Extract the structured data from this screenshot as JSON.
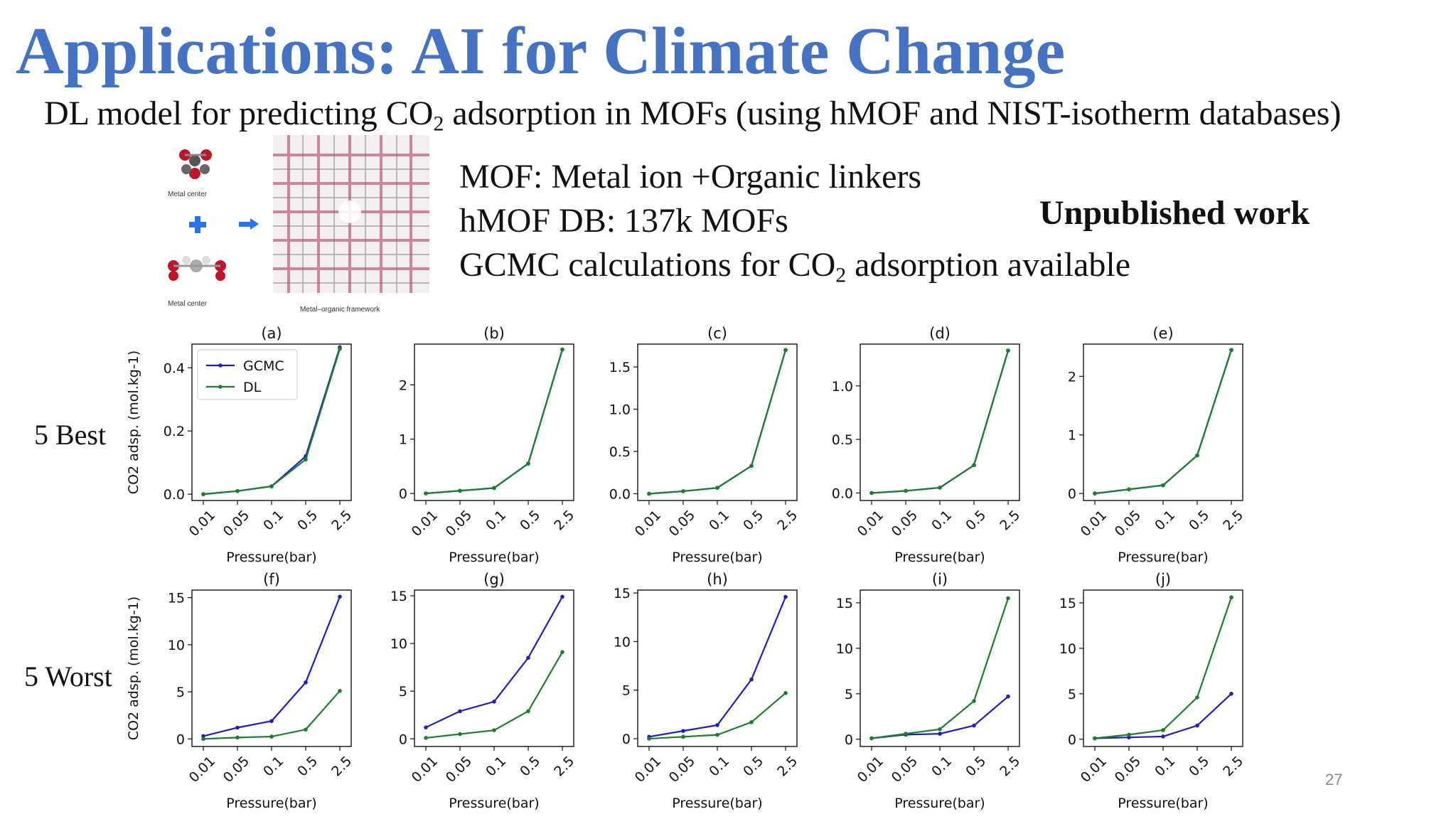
{
  "slide": {
    "title": "Applications: AI for Climate Change",
    "subtitle_pre": "DL model for predicting CO",
    "subtitle_sub": "2",
    "subtitle_post": " adsorption in MOFs (using hMOF and NIST-isotherm databases)",
    "bullets": {
      "line1": "MOF: Metal ion +Organic linkers",
      "line2": "hMOF DB: 137k MOFs",
      "line3_pre": "GCMC calculations for CO",
      "line3_sub": "2",
      "line3_post": " adsorption available"
    },
    "unpublished": "Unpublished work",
    "row_best": "5 Best",
    "row_worst": "5 Worst",
    "page_number": "27",
    "image": {
      "metal_center_top": "Metal center",
      "metal_center_bottom": "Metal center",
      "framework_caption": "Metal–organic framework"
    }
  },
  "colors": {
    "gcmc": "#1f1fbf",
    "dl": "#1a7f2a",
    "title": "#4472c4"
  },
  "chart_data": [
    {
      "type": "line",
      "title": "(a)",
      "x": [
        "0.01",
        "0.05",
        "0.1",
        "0.5",
        "2.5"
      ],
      "xlabel": "Pressure(bar)",
      "ylabel": "CO2 adsp. (mol.kg-1)",
      "ylim": [
        -0.02,
        0.475
      ],
      "yticks": [
        0.0,
        0.2,
        0.4
      ],
      "yticklabels": [
        "0.0",
        "0.2",
        "0.4"
      ],
      "legend": {
        "position": "top-left",
        "entries": [
          "GCMC",
          "DL"
        ]
      },
      "series": [
        {
          "name": "GCMC",
          "values": [
            0.0,
            0.01,
            0.025,
            0.12,
            0.465
          ]
        },
        {
          "name": "DL",
          "values": [
            0.0,
            0.01,
            0.025,
            0.11,
            0.46
          ]
        }
      ]
    },
    {
      "type": "line",
      "title": "(b)",
      "x": [
        "0.01",
        "0.05",
        "0.1",
        "0.5",
        "2.5"
      ],
      "xlabel": "Pressure(bar)",
      "ylim": [
        -0.13,
        2.75
      ],
      "yticks": [
        0,
        1,
        2
      ],
      "yticklabels": [
        "0",
        "1",
        "2"
      ],
      "series": [
        {
          "name": "GCMC",
          "values": [
            0.0,
            0.05,
            0.1,
            0.55,
            2.65
          ]
        },
        {
          "name": "DL",
          "values": [
            0.0,
            0.05,
            0.1,
            0.55,
            2.65
          ]
        }
      ]
    },
    {
      "type": "line",
      "title": "(c)",
      "x": [
        "0.01",
        "0.05",
        "0.1",
        "0.5",
        "2.5"
      ],
      "xlabel": "Pressure(bar)",
      "ylim": [
        -0.08,
        1.77
      ],
      "yticks": [
        0.0,
        0.5,
        1.0,
        1.5
      ],
      "yticklabels": [
        "0.0",
        "0.5",
        "1.0",
        "1.5"
      ],
      "series": [
        {
          "name": "GCMC",
          "values": [
            0.0,
            0.03,
            0.07,
            0.33,
            1.7
          ]
        },
        {
          "name": "DL",
          "values": [
            0.0,
            0.03,
            0.07,
            0.33,
            1.7
          ]
        }
      ]
    },
    {
      "type": "line",
      "title": "(d)",
      "x": [
        "0.01",
        "0.05",
        "0.1",
        "0.5",
        "2.5"
      ],
      "xlabel": "Pressure(bar)",
      "ylim": [
        -0.07,
        1.39
      ],
      "yticks": [
        0.0,
        0.5,
        1.0
      ],
      "yticklabels": [
        "0.0",
        "0.5",
        "1.0"
      ],
      "series": [
        {
          "name": "GCMC",
          "values": [
            0.0,
            0.02,
            0.05,
            0.26,
            1.33
          ]
        },
        {
          "name": "DL",
          "values": [
            0.0,
            0.02,
            0.05,
            0.26,
            1.33
          ]
        }
      ]
    },
    {
      "type": "line",
      "title": "(e)",
      "x": [
        "0.01",
        "0.05",
        "0.1",
        "0.5",
        "2.5"
      ],
      "xlabel": "Pressure(bar)",
      "ylim": [
        -0.12,
        2.55
      ],
      "yticks": [
        0,
        1,
        2
      ],
      "yticklabels": [
        "0",
        "1",
        "2"
      ],
      "series": [
        {
          "name": "GCMC",
          "values": [
            0.0,
            0.07,
            0.14,
            0.65,
            2.45
          ]
        },
        {
          "name": "DL",
          "values": [
            0.0,
            0.07,
            0.14,
            0.65,
            2.45
          ]
        }
      ]
    },
    {
      "type": "line",
      "title": "(f)",
      "x": [
        "0.01",
        "0.05",
        "0.1",
        "0.5",
        "2.5"
      ],
      "xlabel": "Pressure(bar)",
      "ylabel": "CO2 adsp. (mol.kg-1)",
      "ylim": [
        -0.8,
        15.8
      ],
      "yticks": [
        0,
        5,
        10,
        15
      ],
      "yticklabels": [
        "0",
        "5",
        "10",
        "15"
      ],
      "series": [
        {
          "name": "GCMC",
          "values": [
            0.3,
            1.2,
            1.9,
            6.0,
            15.1
          ]
        },
        {
          "name": "DL",
          "values": [
            0.0,
            0.15,
            0.25,
            1.0,
            5.1
          ]
        }
      ]
    },
    {
      "type": "line",
      "title": "(g)",
      "x": [
        "0.01",
        "0.05",
        "0.1",
        "0.5",
        "2.5"
      ],
      "xlabel": "Pressure(bar)",
      "ylim": [
        -0.8,
        15.6
      ],
      "yticks": [
        0,
        5,
        10,
        15
      ],
      "yticklabels": [
        "0",
        "5",
        "10",
        "15"
      ],
      "series": [
        {
          "name": "GCMC",
          "values": [
            1.2,
            2.9,
            3.9,
            8.5,
            14.9
          ]
        },
        {
          "name": "DL",
          "values": [
            0.1,
            0.5,
            0.9,
            2.9,
            9.1
          ]
        }
      ]
    },
    {
      "type": "line",
      "title": "(h)",
      "x": [
        "0.01",
        "0.05",
        "0.1",
        "0.5",
        "2.5"
      ],
      "xlabel": "Pressure(bar)",
      "ylim": [
        -0.8,
        15.3
      ],
      "yticks": [
        0,
        5,
        10,
        15
      ],
      "yticklabels": [
        "0",
        "5",
        "10",
        "15"
      ],
      "series": [
        {
          "name": "GCMC",
          "values": [
            0.2,
            0.8,
            1.4,
            6.1,
            14.6
          ]
        },
        {
          "name": "DL",
          "values": [
            0.0,
            0.2,
            0.4,
            1.7,
            4.7
          ]
        }
      ]
    },
    {
      "type": "line",
      "title": "(i)",
      "x": [
        "0.01",
        "0.05",
        "0.1",
        "0.5",
        "2.5"
      ],
      "xlabel": "Pressure(bar)",
      "ylim": [
        -0.8,
        16.4
      ],
      "yticks": [
        0,
        5,
        10,
        15
      ],
      "yticklabels": [
        "0",
        "5",
        "10",
        "15"
      ],
      "series": [
        {
          "name": "GCMC",
          "values": [
            0.1,
            0.5,
            0.6,
            1.5,
            4.7
          ]
        },
        {
          "name": "DL",
          "values": [
            0.1,
            0.6,
            1.1,
            4.2,
            15.5
          ]
        }
      ]
    },
    {
      "type": "line",
      "title": "(j)",
      "x": [
        "0.01",
        "0.05",
        "0.1",
        "0.5",
        "2.5"
      ],
      "xlabel": "Pressure(bar)",
      "ylim": [
        -0.8,
        16.4
      ],
      "yticks": [
        0,
        5,
        10,
        15
      ],
      "yticklabels": [
        "0",
        "5",
        "10",
        "15"
      ],
      "series": [
        {
          "name": "GCMC",
          "values": [
            0.1,
            0.2,
            0.3,
            1.5,
            5.0
          ]
        },
        {
          "name": "DL",
          "values": [
            0.1,
            0.5,
            1.0,
            4.6,
            15.6
          ]
        }
      ]
    }
  ]
}
